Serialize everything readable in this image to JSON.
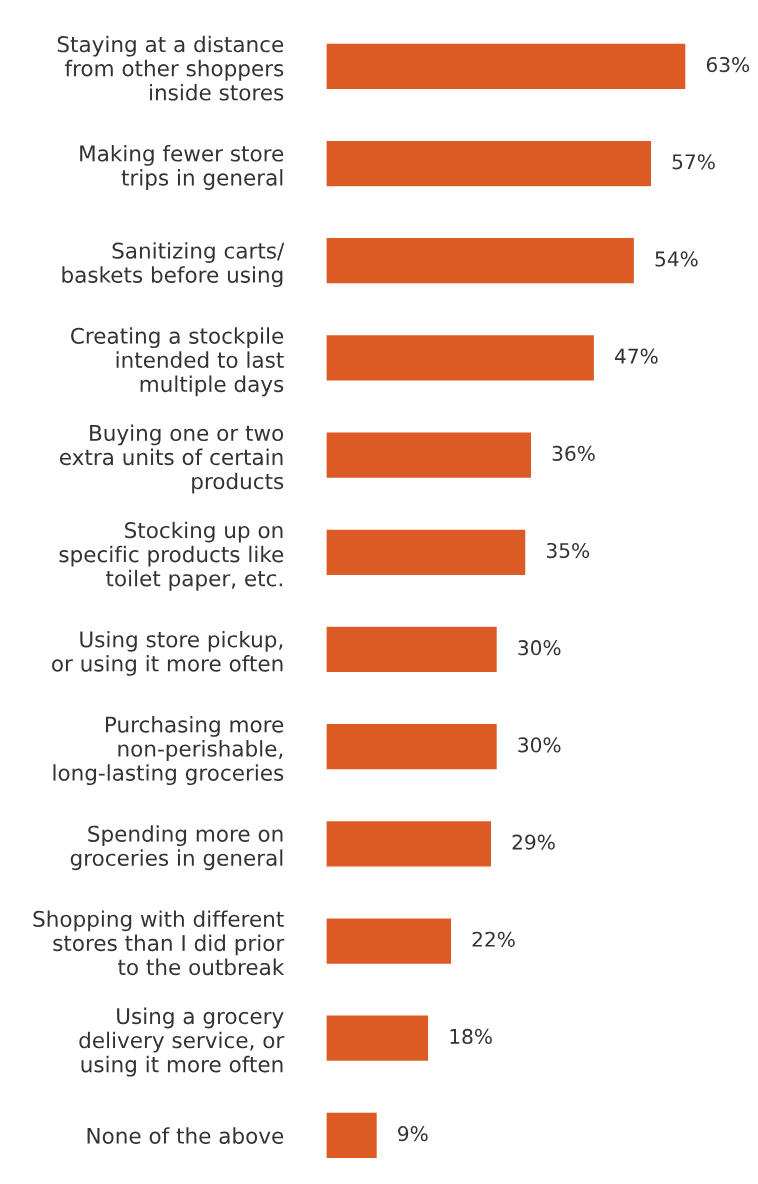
{
  "chart_data": {
    "type": "bar",
    "orientation": "horizontal",
    "color": "#dc5a23",
    "value_labels": [
      "63%",
      "57%",
      "54%",
      "47%",
      "36%",
      "35%",
      "30%",
      "30%",
      "29%",
      "22%",
      "18%",
      "9%"
    ],
    "categories": [
      "Staying at a distance\nfrom other shoppers\ninside stores",
      "Making fewer store\ntrips in general",
      "Sanitizing carts/\nbaskets before using",
      "Creating a stockpile\nintended to last\nmultiple days",
      "Buying one or two\nextra units of certain\nproducts",
      "Stocking up on\nspecific products like\ntoilet paper, etc.",
      "Using store pickup,\nor using it more often",
      "Purchasing more\nnon-perishable,\nlong-lasting groceries",
      "Spending more on\ngroceries in general",
      "Shopping with different\nstores than I did prior\nto the outbreak",
      "Using a grocery\ndelivery service, or\nusing it more often",
      "None of the above"
    ],
    "values": [
      63,
      57,
      54,
      47,
      36,
      35,
      30,
      30,
      29,
      22,
      18,
      9
    ]
  }
}
